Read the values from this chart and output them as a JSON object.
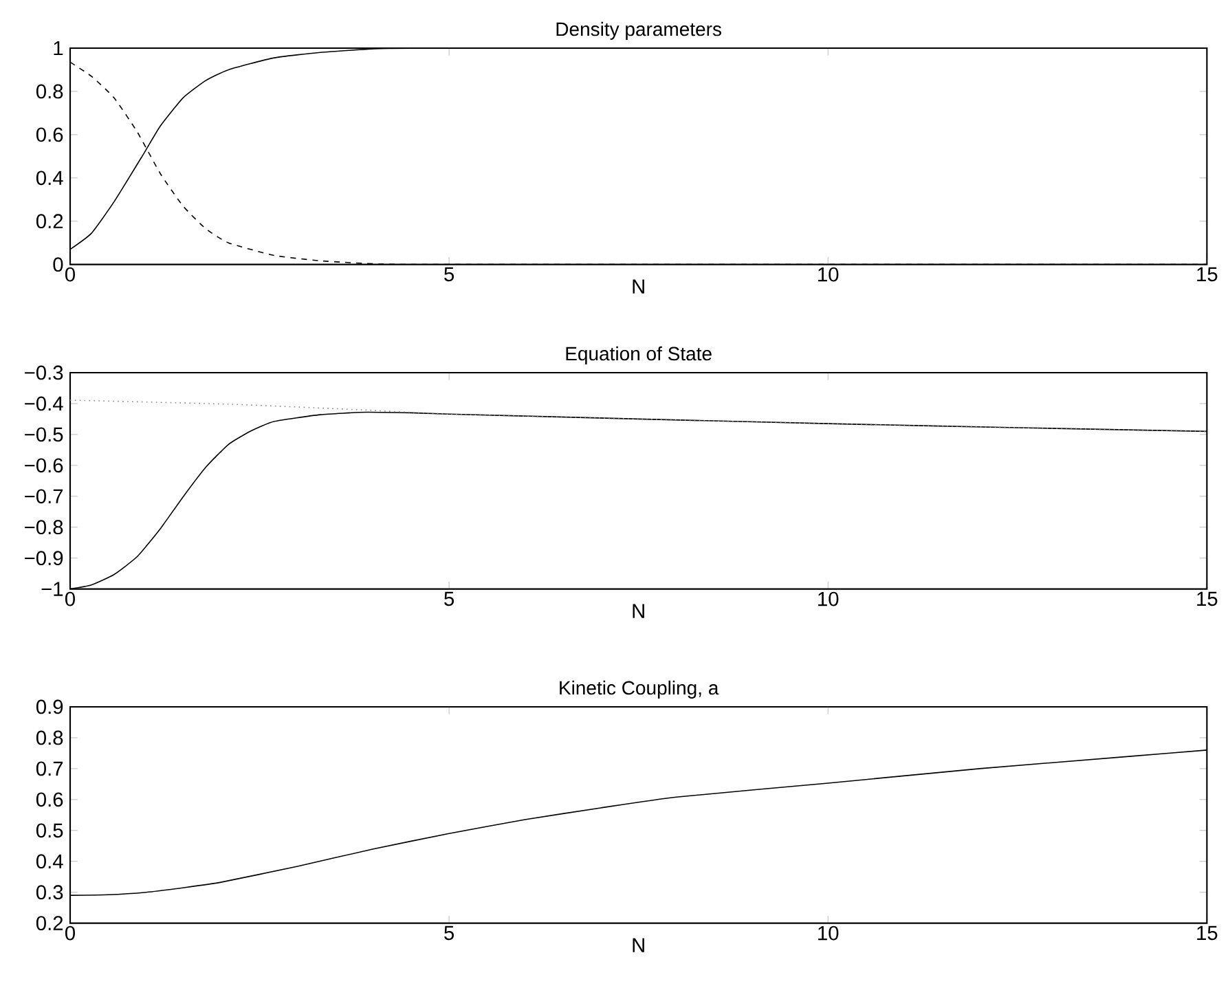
{
  "chart_data": [
    {
      "type": "line",
      "title": "Density parameters",
      "xlabel": "N",
      "xlim": [
        0,
        15
      ],
      "xticks": [
        0,
        5,
        10,
        15
      ],
      "ylim": [
        0,
        1
      ],
      "yticks": [
        0,
        0.2,
        0.4,
        0.6,
        0.8,
        1
      ],
      "series": [
        {
          "color": "#000000",
          "line_style": "solid",
          "x": [
            0,
            0.28,
            0.58,
            0.95,
            1.19,
            1.49,
            1.79,
            2.09,
            2.69,
            3.3,
            4.08,
            5,
            10,
            15
          ],
          "values": [
            0.07,
            0.144,
            0.29,
            0.5,
            0.64,
            0.77,
            0.85,
            0.9,
            0.955,
            0.98,
            0.998,
            1,
            1,
            1
          ]
        },
        {
          "color": "#000000",
          "line_style": "dashed",
          "x": [
            0,
            0.28,
            0.58,
            0.89,
            1.19,
            1.49,
            1.79,
            2.09,
            2.69,
            3.3,
            4.08,
            5,
            10,
            15
          ],
          "values": [
            0.935,
            0.87,
            0.77,
            0.61,
            0.42,
            0.27,
            0.165,
            0.1,
            0.042,
            0.017,
            0.002,
            0,
            0,
            0
          ]
        }
      ]
    },
    {
      "type": "line",
      "title": "Equation of State",
      "xlabel": "N",
      "xlim": [
        0,
        15
      ],
      "xticks": [
        0,
        5,
        10,
        15
      ],
      "ylim": [
        -1,
        -0.3
      ],
      "yticks": [
        {
          "value": -1,
          "label": "−1"
        },
        {
          "value": -0.9,
          "label": "−0.9"
        },
        {
          "value": -0.8,
          "label": "−0.8"
        },
        {
          "value": -0.7,
          "label": "−0.7"
        },
        {
          "value": -0.6,
          "label": "−0.6"
        },
        {
          "value": -0.5,
          "label": "−0.5"
        },
        {
          "value": -0.4,
          "label": "−0.4"
        },
        {
          "value": -0.3,
          "label": "−0.3"
        }
      ],
      "series": [
        {
          "color": "#000000",
          "line_style": "solid",
          "x": [
            0,
            0.28,
            0.58,
            0.89,
            1.19,
            1.49,
            1.79,
            2.09,
            2.39,
            2.69,
            3.3,
            3.9,
            4.5,
            5,
            7.5,
            10,
            12.5,
            15
          ],
          "values": [
            -1,
            -0.987,
            -0.953,
            -0.894,
            -0.805,
            -0.702,
            -0.606,
            -0.532,
            -0.488,
            -0.458,
            -0.436,
            -0.428,
            -0.43,
            -0.434,
            -0.45,
            -0.465,
            -0.478,
            -0.49
          ]
        },
        {
          "color": "#888888",
          "line_style": "dotted",
          "x": [
            0,
            2.09,
            3.9,
            5,
            7.5,
            10,
            12.5,
            15
          ],
          "values": [
            -0.389,
            -0.402,
            -0.421,
            -0.434,
            -0.45,
            -0.465,
            -0.478,
            -0.49
          ]
        }
      ]
    },
    {
      "type": "line",
      "title": "Kinetic Coupling, a",
      "xlabel": "N",
      "xlim": [
        0,
        15
      ],
      "xticks": [
        0,
        5,
        10,
        15
      ],
      "ylim": [
        0.2,
        0.9
      ],
      "yticks": [
        0.2,
        0.3,
        0.4,
        0.5,
        0.6,
        0.7,
        0.8,
        0.9
      ],
      "series": [
        {
          "color": "#000000",
          "line_style": "solid",
          "x": [
            0,
            0.5,
            1,
            1.5,
            2,
            3,
            4,
            5,
            6,
            7,
            8,
            10,
            12,
            14,
            15
          ],
          "values": [
            0.29,
            0.292,
            0.3,
            0.315,
            0.333,
            0.384,
            0.44,
            0.49,
            0.535,
            0.573,
            0.608,
            0.653,
            0.7,
            0.74,
            0.76
          ]
        }
      ]
    }
  ]
}
